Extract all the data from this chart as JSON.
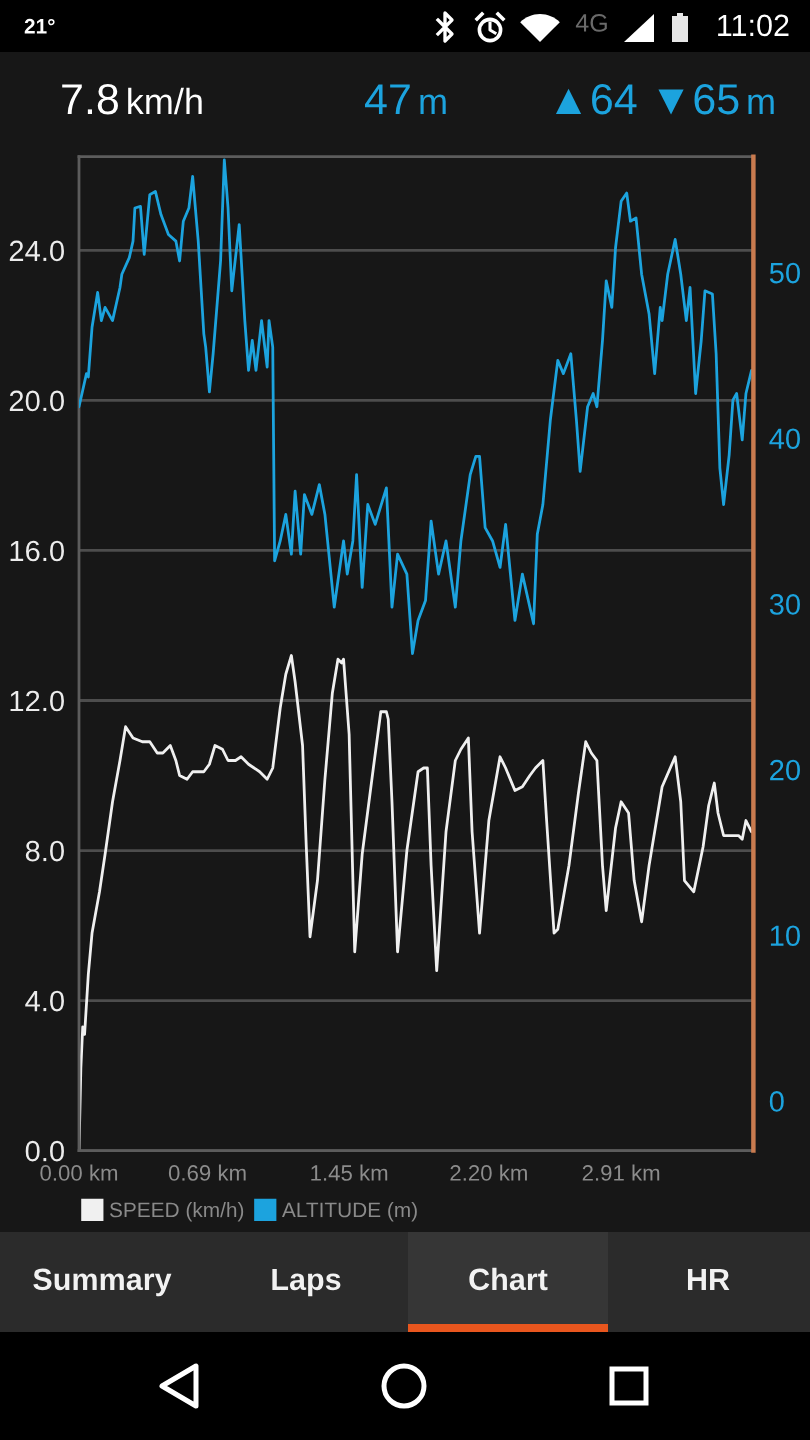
{
  "chart_data": {
    "type": "line",
    "xlim": [
      0,
      3.62
    ],
    "xticks": [
      {
        "value": 0,
        "label": "0.00 km"
      },
      {
        "value": 0.69,
        "label": "0.69 km"
      },
      {
        "value": 1.45,
        "label": "1.45 km"
      },
      {
        "value": 2.2,
        "label": "2.20 km"
      },
      {
        "value": 2.91,
        "label": "2.91 km"
      }
    ],
    "ylim": [
      0,
      26.5
    ],
    "yticks": [
      {
        "value": 0,
        "label": "0.0"
      },
      {
        "value": 4,
        "label": "4.0"
      },
      {
        "value": 8,
        "label": "8.0"
      },
      {
        "value": 12,
        "label": "12.0"
      },
      {
        "value": 16,
        "label": "16.0"
      },
      {
        "value": 20,
        "label": "20.0"
      },
      {
        "value": 24,
        "label": "24.0"
      }
    ],
    "y2lim": [
      -3,
      57
    ],
    "y2ticks": [
      0,
      10,
      20,
      30,
      40,
      50
    ],
    "grid": "y",
    "legend": "bottom",
    "series": [
      {
        "name": "SPEED (km/h)",
        "color": "#f0f0f0",
        "x": [
          0,
          0.01,
          0.02,
          0.03,
          0.05,
          0.07,
          0.11,
          0.14,
          0.18,
          0.22,
          0.25,
          0.29,
          0.34,
          0.38,
          0.42,
          0.45,
          0.49,
          0.52,
          0.54,
          0.58,
          0.61,
          0.67,
          0.7,
          0.73,
          0.77,
          0.8,
          0.84,
          0.87,
          0.91,
          0.97,
          1.01,
          1.04,
          1.08,
          1.11,
          1.14,
          1.16,
          1.2,
          1.22,
          1.24,
          1.28,
          1.32,
          1.36,
          1.39,
          1.41,
          1.42,
          1.45,
          1.48,
          1.52,
          1.58,
          1.62,
          1.65,
          1.66,
          1.68,
          1.71,
          1.76,
          1.82,
          1.85,
          1.87,
          1.89,
          1.92,
          1.97,
          2.02,
          2.05,
          2.09,
          2.11,
          2.15,
          2.2,
          2.26,
          2.29,
          2.34,
          2.38,
          2.42,
          2.45,
          2.49,
          2.51,
          2.55,
          2.57,
          2.63,
          2.68,
          2.72,
          2.75,
          2.78,
          2.81,
          2.83,
          2.88,
          2.91,
          2.95,
          2.98,
          3.02,
          3.06,
          3.13,
          3.2,
          3.23,
          3.25,
          3.3,
          3.35,
          3.38,
          3.41,
          3.43,
          3.46,
          3.51,
          3.54,
          3.56,
          3.58,
          3.61
        ],
        "values": [
          0.0,
          2.2,
          3.3,
          3.1,
          4.7,
          5.8,
          6.9,
          7.9,
          9.3,
          10.4,
          11.3,
          11.0,
          10.9,
          10.9,
          10.6,
          10.6,
          10.8,
          10.4,
          10.0,
          9.9,
          10.1,
          10.1,
          10.3,
          10.8,
          10.7,
          10.4,
          10.4,
          10.5,
          10.3,
          10.1,
          9.9,
          10.2,
          11.8,
          12.7,
          13.2,
          12.5,
          10.8,
          8.1,
          5.7,
          7.2,
          9.9,
          12.2,
          13.1,
          13.0,
          13.1,
          11.1,
          5.3,
          7.9,
          10.2,
          11.7,
          11.7,
          11.5,
          9.3,
          5.3,
          8.0,
          10.1,
          10.2,
          10.2,
          7.6,
          4.8,
          8.5,
          10.4,
          10.7,
          11.0,
          8.5,
          5.8,
          8.8,
          10.5,
          10.2,
          9.6,
          9.7,
          10.0,
          10.2,
          10.4,
          8.8,
          5.8,
          5.9,
          7.6,
          9.5,
          10.9,
          10.6,
          10.4,
          7.6,
          6.4,
          8.6,
          9.3,
          9.0,
          7.2,
          6.1,
          7.6,
          9.7,
          10.5,
          9.3,
          7.2,
          6.9,
          8.1,
          9.2,
          9.8,
          9.0,
          8.4,
          8.4,
          8.4,
          8.3,
          8.8,
          8.5
        ]
      },
      {
        "name": "ALTITUDE (m)",
        "color": "#1ca3de",
        "axis": "y2",
        "x": [
          0,
          0.02,
          0.04,
          0.05,
          0.07,
          0.1,
          0.12,
          0.14,
          0.18,
          0.22,
          0.23,
          0.27,
          0.29,
          0.3,
          0.33,
          0.35,
          0.36,
          0.38,
          0.41,
          0.44,
          0.48,
          0.52,
          0.54,
          0.56,
          0.59,
          0.61,
          0.64,
          0.67,
          0.68,
          0.7,
          0.72,
          0.76,
          0.78,
          0.8,
          0.82,
          0.86,
          0.89,
          0.91,
          0.93,
          0.95,
          0.98,
          1.01,
          1.02,
          1.04,
          1.05,
          1.08,
          1.11,
          1.14,
          1.16,
          1.19,
          1.21,
          1.25,
          1.29,
          1.32,
          1.37,
          1.42,
          1.44,
          1.47,
          1.49,
          1.52,
          1.55,
          1.59,
          1.65,
          1.68,
          1.71,
          1.76,
          1.79,
          1.82,
          1.86,
          1.89,
          1.93,
          1.97,
          2.02,
          2.05,
          2.1,
          2.13,
          2.15,
          2.18,
          2.22,
          2.26,
          2.29,
          2.34,
          2.38,
          2.44,
          2.46,
          2.49,
          2.53,
          2.57,
          2.6,
          2.64,
          2.67,
          2.69,
          2.73,
          2.76,
          2.78,
          2.81,
          2.83,
          2.86,
          2.88,
          2.91,
          2.94,
          2.96,
          2.99,
          3.02,
          3.06,
          3.09,
          3.12,
          3.13,
          3.16,
          3.2,
          3.23,
          3.26,
          3.28,
          3.31,
          3.34,
          3.36,
          3.4,
          3.42,
          3.44,
          3.46,
          3.49,
          3.51,
          3.53,
          3.56,
          3.58,
          3.61
        ],
        "values": [
          41.9,
          42.9,
          43.9,
          43.7,
          46.7,
          48.8,
          47.1,
          47.9,
          47.1,
          49.1,
          49.9,
          50.9,
          51.9,
          53.9,
          54.0,
          51.1,
          52.3,
          54.7,
          54.9,
          53.5,
          52.3,
          51.9,
          50.7,
          53.1,
          53.9,
          55.8,
          51.9,
          46.3,
          45.5,
          42.8,
          45.1,
          50.7,
          56.8,
          53.9,
          48.9,
          52.9,
          47.1,
          44.1,
          45.9,
          44.1,
          47.1,
          44.3,
          47.1,
          45.5,
          32.6,
          33.8,
          35.4,
          33.0,
          36.8,
          33.0,
          36.6,
          35.4,
          37.2,
          35.4,
          29.8,
          33.8,
          31.8,
          33.8,
          37.8,
          31.0,
          36.0,
          34.8,
          37.0,
          29.8,
          33.0,
          31.8,
          27.0,
          29.0,
          30.2,
          35.0,
          31.8,
          33.8,
          29.8,
          33.8,
          37.8,
          38.9,
          38.9,
          34.6,
          33.8,
          32.2,
          34.8,
          29.0,
          31.8,
          28.8,
          34.2,
          36.0,
          41.1,
          44.7,
          43.9,
          45.1,
          41.1,
          38.0,
          41.9,
          42.7,
          41.9,
          45.9,
          49.5,
          47.9,
          51.5,
          54.3,
          54.8,
          53.1,
          53.3,
          49.9,
          47.5,
          43.9,
          47.9,
          47.1,
          49.9,
          52.0,
          49.9,
          47.1,
          49.1,
          42.7,
          45.9,
          48.9,
          48.7,
          45.1,
          38.2,
          36.0,
          39.0,
          42.3,
          42.7,
          39.9,
          42.7,
          44.1
        ]
      }
    ],
    "annotations": [
      "21°",
      "4G",
      "11:02",
      "7.8 km/h",
      "47 m",
      "▲64 ▼65 m",
      "Summary",
      "Laps",
      "Chart",
      "HR"
    ]
  }
}
